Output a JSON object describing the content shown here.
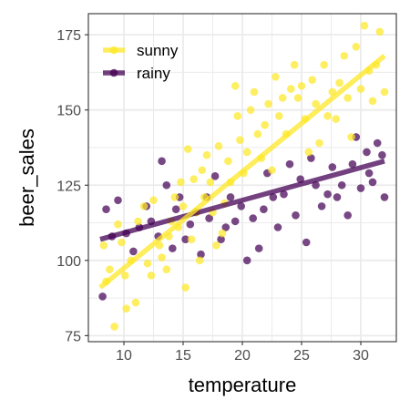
{
  "chart_data": {
    "type": "scatter",
    "xlabel": "temperature",
    "ylabel": "beer_sales",
    "xlim": [
      7,
      33
    ],
    "ylim": [
      73,
      182
    ],
    "x_ticks": [
      10,
      15,
      20,
      25,
      30
    ],
    "y_ticks": [
      75,
      100,
      125,
      150,
      175
    ],
    "grid": true,
    "legend_position": "top-left",
    "series": [
      {
        "name": "sunny",
        "color": "#FDE725",
        "fit_line": {
          "x": [
            8,
            32
          ],
          "y": [
            91,
            168
          ]
        },
        "points": [
          [
            8.3,
            105
          ],
          [
            8.5,
            93
          ],
          [
            8.8,
            97
          ],
          [
            9.2,
            78
          ],
          [
            9.5,
            112
          ],
          [
            9.8,
            106
          ],
          [
            10.1,
            95
          ],
          [
            10.2,
            84
          ],
          [
            10.6,
            100
          ],
          [
            11.0,
            86
          ],
          [
            11.2,
            113
          ],
          [
            11.7,
            118
          ],
          [
            12.0,
            99
          ],
          [
            12.3,
            95
          ],
          [
            12.5,
            120
          ],
          [
            13.0,
            105
          ],
          [
            13.2,
            101
          ],
          [
            13.6,
            97
          ],
          [
            13.8,
            108
          ],
          [
            14.0,
            113
          ],
          [
            14.3,
            121
          ],
          [
            14.6,
            111
          ],
          [
            14.8,
            126
          ],
          [
            15.0,
            118
          ],
          [
            15.2,
            91
          ],
          [
            15.4,
            137
          ],
          [
            15.7,
            107
          ],
          [
            15.9,
            127
          ],
          [
            16.1,
            116
          ],
          [
            16.4,
            100
          ],
          [
            16.6,
            130
          ],
          [
            16.8,
            121
          ],
          [
            17.0,
            135
          ],
          [
            17.3,
            126
          ],
          [
            17.5,
            116
          ],
          [
            17.8,
            105
          ],
          [
            18.0,
            138
          ],
          [
            18.3,
            109
          ],
          [
            18.5,
            119
          ],
          [
            18.8,
            133
          ],
          [
            19.0,
            126
          ],
          [
            19.4,
            158
          ],
          [
            19.6,
            148
          ],
          [
            19.8,
            140
          ],
          [
            20.1,
            129
          ],
          [
            20.4,
            136
          ],
          [
            20.7,
            150
          ],
          [
            21.0,
            156
          ],
          [
            21.3,
            142
          ],
          [
            21.6,
            134
          ],
          [
            21.9,
            145
          ],
          [
            22.2,
            152
          ],
          [
            22.5,
            130
          ],
          [
            22.8,
            161
          ],
          [
            23.1,
            148
          ],
          [
            23.4,
            154
          ],
          [
            23.7,
            142
          ],
          [
            24.1,
            157
          ],
          [
            24.4,
            165
          ],
          [
            24.7,
            154
          ],
          [
            25.0,
            158
          ],
          [
            25.3,
            147
          ],
          [
            25.6,
            136
          ],
          [
            25.9,
            160
          ],
          [
            26.2,
            152
          ],
          [
            26.5,
            139
          ],
          [
            26.9,
            165
          ],
          [
            27.2,
            148
          ],
          [
            27.6,
            156
          ],
          [
            27.9,
            147
          ],
          [
            28.2,
            159
          ],
          [
            28.6,
            168
          ],
          [
            28.9,
            154
          ],
          [
            29.2,
            141
          ],
          [
            29.6,
            171
          ],
          [
            30.0,
            157
          ],
          [
            30.3,
            178
          ],
          [
            30.7,
            163
          ],
          [
            31.0,
            153
          ],
          [
            31.3,
            165
          ],
          [
            31.6,
            176
          ],
          [
            32.0,
            156
          ]
        ]
      },
      {
        "name": "rainy",
        "color": "#440154",
        "fit_line": {
          "x": [
            8,
            32
          ],
          "y": [
            107,
            133
          ]
        },
        "points": [
          [
            8.2,
            88
          ],
          [
            8.5,
            117
          ],
          [
            9.0,
            108
          ],
          [
            9.5,
            120
          ],
          [
            10.2,
            109
          ],
          [
            10.8,
            103
          ],
          [
            11.3,
            111
          ],
          [
            11.9,
            118
          ],
          [
            12.3,
            113
          ],
          [
            12.9,
            108
          ],
          [
            13.2,
            133
          ],
          [
            13.6,
            125
          ],
          [
            14.1,
            104
          ],
          [
            14.4,
            117
          ],
          [
            14.7,
            121
          ],
          [
            15.2,
            107
          ],
          [
            15.6,
            112
          ],
          [
            16.1,
            116
          ],
          [
            16.5,
            102
          ],
          [
            17.0,
            121
          ],
          [
            17.2,
            114
          ],
          [
            17.7,
            128
          ],
          [
            18.2,
            107
          ],
          [
            18.6,
            111
          ],
          [
            19.0,
            121
          ],
          [
            19.4,
            113
          ],
          [
            19.9,
            118
          ],
          [
            20.4,
            100
          ],
          [
            20.9,
            114
          ],
          [
            21.4,
            104
          ],
          [
            21.8,
            117
          ],
          [
            22.1,
            129
          ],
          [
            22.6,
            121
          ],
          [
            23.0,
            111
          ],
          [
            23.5,
            122
          ],
          [
            24.0,
            132
          ],
          [
            24.5,
            115
          ],
          [
            24.9,
            127
          ],
          [
            25.4,
            106
          ],
          [
            25.8,
            134
          ],
          [
            26.2,
            125
          ],
          [
            26.7,
            118
          ],
          [
            27.2,
            122
          ],
          [
            27.6,
            131
          ],
          [
            28.0,
            121
          ],
          [
            28.4,
            125
          ],
          [
            28.9,
            115
          ],
          [
            29.3,
            132
          ],
          [
            29.6,
            141
          ],
          [
            30.0,
            124
          ],
          [
            30.5,
            136
          ],
          [
            30.7,
            129
          ],
          [
            31.0,
            126
          ],
          [
            31.4,
            139
          ],
          [
            31.8,
            135
          ],
          [
            32.0,
            121
          ]
        ]
      }
    ]
  }
}
